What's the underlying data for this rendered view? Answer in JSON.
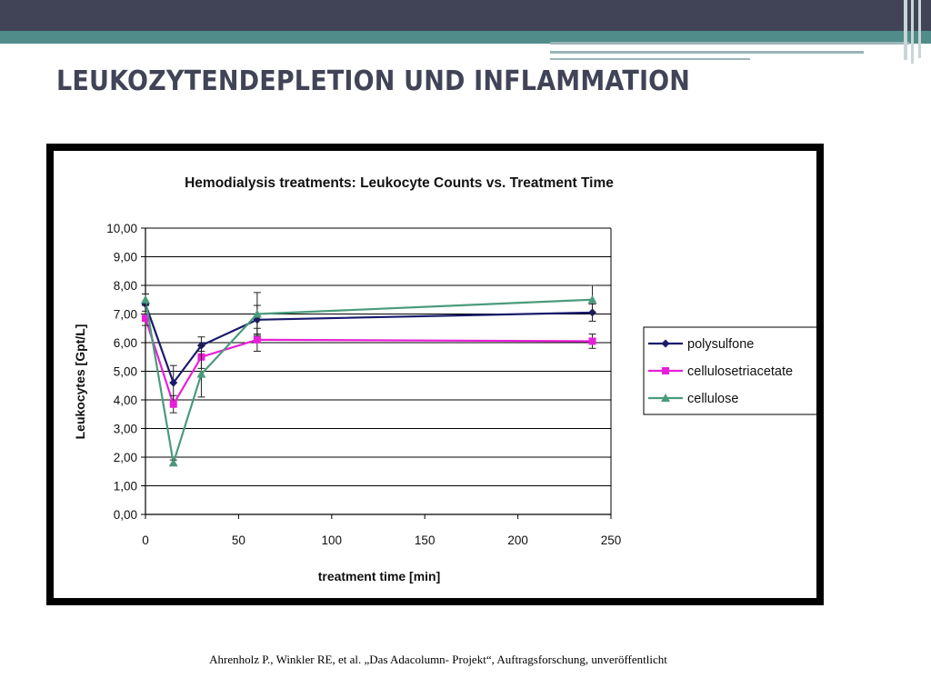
{
  "slide": {
    "title": "LEUKOZYTENDEPLETION UND INFLAMMATION",
    "citation": "Ahrenholz P., Winkler RE, et al. „Das Adacolumn- Projekt“, Auftragsforschung, unveröffentlicht"
  },
  "colors": {
    "header_band": "#414457",
    "accent_band": "#4f8c8a",
    "title_text": "#414457"
  },
  "chart_data": {
    "type": "line",
    "title": "Hemodialysis treatments: Leukocyte Counts vs. Treatment Time",
    "xlabel": "treatment time [min]",
    "ylabel": "Leukocytes [Gpt/L]",
    "xlim": [
      0,
      250
    ],
    "ylim": [
      0,
      10
    ],
    "xticks": [
      "0",
      "50",
      "100",
      "150",
      "200",
      "250"
    ],
    "yticks": [
      "0,00",
      "1,00",
      "2,00",
      "3,00",
      "4,00",
      "5,00",
      "6,00",
      "7,00",
      "8,00",
      "9,00",
      "10,00"
    ],
    "grid": "horizontal",
    "legend_position": "right",
    "series": [
      {
        "name": "polysulfone",
        "color": "#1a1a6e",
        "marker": "diamond",
        "x": [
          0,
          15,
          30,
          60,
          240
        ],
        "y": [
          7.35,
          4.6,
          5.9,
          6.8,
          7.05
        ],
        "err": [
          0.35,
          0.6,
          0.3,
          0.5,
          0.3
        ]
      },
      {
        "name": "cellulosetriacetate",
        "color": "#e81fd8",
        "marker": "square",
        "x": [
          0,
          15,
          30,
          60,
          240
        ],
        "y": [
          6.85,
          3.85,
          5.5,
          6.1,
          6.05
        ],
        "err": [
          0.25,
          0.3,
          0.4,
          0.4,
          0.25
        ]
      },
      {
        "name": "cellulose",
        "color": "#4a9b7c",
        "marker": "triangle",
        "x": [
          0,
          15,
          30,
          60,
          240
        ],
        "y": [
          7.5,
          1.8,
          4.9,
          7.0,
          7.5
        ],
        "err": [
          0.2,
          0.1,
          0.8,
          0.75,
          0.5
        ]
      }
    ]
  }
}
